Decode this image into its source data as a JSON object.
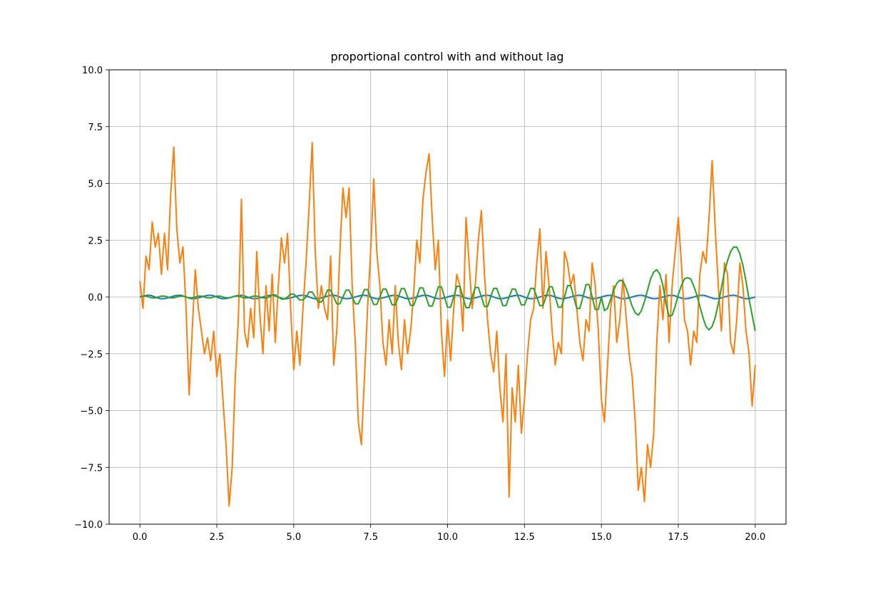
{
  "chart_data": {
    "type": "line",
    "title": "proportional control with and without lag",
    "x": [
      0,
      0.1,
      0.2,
      0.3,
      0.4,
      0.5,
      0.6,
      0.7,
      0.8,
      0.9,
      1,
      1.1,
      1.2,
      1.3,
      1.4,
      1.5,
      1.6,
      1.7,
      1.8,
      1.9,
      2,
      2.1,
      2.2,
      2.3,
      2.4,
      2.5,
      2.6,
      2.7,
      2.8,
      2.9,
      3,
      3.1,
      3.2,
      3.3,
      3.4,
      3.5,
      3.6,
      3.7,
      3.8,
      3.9,
      4,
      4.1,
      4.2,
      4.3,
      4.4,
      4.5,
      4.6,
      4.7,
      4.8,
      4.9,
      5,
      5.1,
      5.2,
      5.3,
      5.4,
      5.5,
      5.6,
      5.7,
      5.8,
      5.9,
      6,
      6.1,
      6.2,
      6.3,
      6.4,
      6.5,
      6.6,
      6.7,
      6.8,
      6.9,
      7,
      7.1,
      7.2,
      7.3,
      7.4,
      7.5,
      7.6,
      7.7,
      7.8,
      7.9,
      8,
      8.1,
      8.2,
      8.3,
      8.4,
      8.5,
      8.6,
      8.7,
      8.8,
      8.9,
      9,
      9.1,
      9.2,
      9.3,
      9.4,
      9.5,
      9.6,
      9.7,
      9.8,
      9.9,
      10,
      10.1,
      10.2,
      10.3,
      10.4,
      10.5,
      10.6,
      10.7,
      10.8,
      10.9,
      11,
      11.1,
      11.2,
      11.3,
      11.4,
      11.5,
      11.6,
      11.7,
      11.8,
      11.9,
      12,
      12.1,
      12.2,
      12.3,
      12.4,
      12.5,
      12.6,
      12.7,
      12.8,
      12.9,
      13,
      13.1,
      13.2,
      13.3,
      13.4,
      13.5,
      13.6,
      13.7,
      13.8,
      13.9,
      14,
      14.1,
      14.2,
      14.3,
      14.4,
      14.5,
      14.6,
      14.7,
      14.8,
      14.9,
      15,
      15.1,
      15.2,
      15.3,
      15.4,
      15.5,
      15.6,
      15.7,
      15.8,
      15.9,
      16,
      16.1,
      16.2,
      16.3,
      16.4,
      16.5,
      16.6,
      16.7,
      16.8,
      16.9,
      17,
      17.1,
      17.2,
      17.3,
      17.4,
      17.5,
      17.6,
      17.7,
      17.8,
      17.9,
      18,
      18.1,
      18.2,
      18.3,
      18.4,
      18.5,
      18.6,
      18.7,
      18.8,
      18.9,
      19,
      19.1,
      19.2,
      19.3,
      19.4,
      19.5,
      19.6,
      19.7,
      19.8,
      19.9,
      20
    ],
    "series": [
      {
        "color": "#1f77b4",
        "values": [
          0,
          0.04,
          0.07,
          0.08,
          0.05,
          0,
          -0.05,
          -0.08,
          -0.07,
          -0.04,
          0,
          0.04,
          0.07,
          0.08,
          0.05,
          0,
          -0.05,
          -0.08,
          -0.07,
          -0.04,
          0,
          0.04,
          0.07,
          0.08,
          0.05,
          0,
          -0.05,
          -0.08,
          -0.07,
          -0.04,
          0,
          0.04,
          0.07,
          0.08,
          0.05,
          0,
          -0.05,
          -0.08,
          -0.07,
          -0.04,
          0,
          0.04,
          0.07,
          0.08,
          0.05,
          0,
          -0.05,
          -0.08,
          -0.07,
          -0.04,
          0,
          0.04,
          0.07,
          0.08,
          0.05,
          0,
          -0.05,
          -0.08,
          -0.07,
          -0.04,
          0,
          0.04,
          0.07,
          0.08,
          0.05,
          0,
          -0.05,
          -0.08,
          -0.07,
          -0.04,
          0,
          0.04,
          0.07,
          0.08,
          0.05,
          0,
          -0.05,
          -0.08,
          -0.07,
          -0.04,
          0,
          0.04,
          0.07,
          0.08,
          0.05,
          0,
          -0.05,
          -0.08,
          -0.07,
          -0.04,
          0,
          0.04,
          0.07,
          0.08,
          0.05,
          0,
          -0.05,
          -0.08,
          -0.07,
          -0.04,
          0,
          0.04,
          0.07,
          0.08,
          0.05,
          0,
          -0.05,
          -0.08,
          -0.07,
          -0.04,
          0,
          0.04,
          0.07,
          0.08,
          0.05,
          0,
          -0.05,
          -0.08,
          -0.07,
          -0.04,
          0,
          0.04,
          0.07,
          0.08,
          0.05,
          0,
          -0.05,
          -0.08,
          -0.07,
          -0.04,
          0,
          0.04,
          0.07,
          0.08,
          0.05,
          0,
          -0.05,
          -0.08,
          -0.07,
          -0.04,
          0,
          0.04,
          0.07,
          0.08,
          0.05,
          0,
          -0.05,
          -0.08,
          -0.07,
          -0.04,
          0,
          0.04,
          0.07,
          0.08,
          0.05,
          0,
          -0.05,
          -0.08,
          -0.07,
          -0.04,
          0,
          0.04,
          0.07,
          0.08,
          0.05,
          0,
          -0.05,
          -0.08,
          -0.07,
          -0.04,
          0,
          0.04,
          0.07,
          0.08,
          0.05,
          0,
          -0.05,
          -0.08,
          -0.07,
          -0.04,
          0,
          0.04,
          0.07,
          0.08,
          0.05,
          0,
          -0.05,
          -0.08,
          -0.07,
          -0.04,
          0,
          0.04,
          0.07,
          0.08,
          0.05,
          0,
          -0.05,
          -0.08,
          -0.07,
          -0.04,
          0
        ]
      },
      {
        "color": "#ff7f0e",
        "values": [
          0.7,
          -0.5,
          1.8,
          1.2,
          3.3,
          2.2,
          2.8,
          1.0,
          2.8,
          1.2,
          4.5,
          6.6,
          3.0,
          1.5,
          2.2,
          -0.5,
          -4.3,
          -1.5,
          1.2,
          -0.5,
          -1.5,
          -2.5,
          -1.8,
          -2.8,
          -1.5,
          -3.5,
          -2.5,
          -4.5,
          -6.5,
          -9.2,
          -7.5,
          -3.5,
          -1.0,
          4.3,
          -1.5,
          -2.2,
          -0.5,
          -1.8,
          2.0,
          -0.8,
          -2.5,
          0.5,
          -1.5,
          1.0,
          -2.0,
          0.5,
          2.6,
          1.5,
          2.8,
          -0.5,
          -3.2,
          -1.5,
          -3.0,
          -0.5,
          1.5,
          4.0,
          6.8,
          2.0,
          -0.5,
          0.5,
          -0.5,
          -1.0,
          1.8,
          -3.0,
          -1.5,
          2.0,
          4.8,
          3.5,
          4.8,
          0.5,
          -2.0,
          -5.5,
          -6.5,
          -3.5,
          -0.5,
          2.0,
          5.2,
          2.0,
          0.5,
          -2.0,
          -3.0,
          -1.0,
          -2.5,
          0.5,
          -2.0,
          -3.2,
          -1.0,
          -2.5,
          -1.5,
          0.2,
          2.5,
          1.5,
          4.3,
          5.5,
          6.3,
          3.5,
          1.2,
          2.5,
          -1.5,
          -3.5,
          -1.0,
          -2.8,
          -0.5,
          1.0,
          0.5,
          -1.5,
          3.5,
          1.5,
          -0.5,
          0.5,
          2.5,
          3.8,
          1.0,
          -1.0,
          -2.5,
          -3.3,
          -1.5,
          -4.0,
          -5.5,
          -2.5,
          -8.8,
          -4.0,
          -5.5,
          -3.0,
          -6.0,
          -4.5,
          -2.5,
          -1.0,
          -0.5,
          1.5,
          3.0,
          -0.5,
          2.0,
          0.5,
          -1.5,
          -3.0,
          -2.0,
          -2.5,
          2.0,
          1.5,
          0.5,
          1.0,
          -0.5,
          -2.0,
          -2.8,
          -1.0,
          -1.5,
          1.5,
          0.5,
          -1.5,
          -4.5,
          -5.5,
          -3.0,
          -0.5,
          0.5,
          -2.0,
          -1.0,
          0.8,
          -0.8,
          -2.5,
          -3.5,
          -5.5,
          -8.5,
          -7.5,
          -9.0,
          -6.5,
          -7.5,
          -6.0,
          -2.0,
          0.5,
          -1.0,
          1.0,
          -2.0,
          0.5,
          2.0,
          3.5,
          1.5,
          -1.0,
          -1.5,
          -3.0,
          -1.5,
          -2.0,
          1.0,
          2.0,
          1.5,
          3.5,
          6.0,
          3.0,
          0.5,
          -1.5,
          1.5,
          1.0,
          -2.0,
          -2.5,
          -1.0,
          1.5,
          0.5,
          -1.5,
          -2.5,
          -4.8,
          -3.0
        ]
      },
      {
        "color": "#2ca02c",
        "values": [
          0,
          0.04,
          0.04,
          0,
          -0.04,
          -0.04,
          0,
          0.04,
          0.04,
          0,
          -0.04,
          -0.04,
          0,
          0.04,
          0.04,
          0,
          -0.04,
          -0.04,
          0,
          0.04,
          0.04,
          0,
          -0.04,
          -0.04,
          0,
          0.04,
          0.04,
          0,
          -0.04,
          -0.04,
          0,
          0.04,
          0.04,
          0,
          -0.04,
          -0.04,
          0,
          0.04,
          0.04,
          0,
          -0.04,
          -0.04,
          0,
          0.09,
          0.09,
          0,
          -0.09,
          -0.09,
          0,
          0.13,
          0.13,
          0,
          -0.13,
          -0.13,
          0,
          0.22,
          0.22,
          0,
          -0.22,
          -0.22,
          0,
          0.3,
          0.3,
          0,
          -0.3,
          -0.3,
          0,
          0.3,
          0.3,
          0,
          -0.3,
          -0.3,
          0,
          0.33,
          0.33,
          0,
          -0.33,
          -0.33,
          0,
          0.35,
          0.35,
          0,
          -0.35,
          -0.35,
          0,
          0.37,
          0.37,
          0,
          -0.37,
          -0.37,
          0,
          0.4,
          0.4,
          0,
          -0.4,
          -0.4,
          0,
          0.45,
          0.45,
          0,
          -0.45,
          -0.45,
          0,
          0.47,
          0.47,
          0,
          -0.47,
          -0.47,
          0,
          0.42,
          0.42,
          0,
          -0.42,
          -0.42,
          0,
          0.38,
          0.38,
          0,
          -0.38,
          -0.38,
          0,
          0.35,
          0.35,
          0,
          -0.35,
          -0.35,
          0,
          0.38,
          0.38,
          0,
          -0.38,
          -0.38,
          0,
          0.45,
          0.45,
          0,
          -0.45,
          -0.45,
          0,
          0.5,
          0.5,
          0,
          -0.5,
          -0.5,
          0,
          0.55,
          0.55,
          0,
          -0.55,
          -0.55,
          0,
          -0.6,
          -0.5,
          -0.1,
          0.3,
          0.6,
          0.74,
          0.7,
          0.4,
          0,
          -0.4,
          -0.7,
          -0.8,
          -0.6,
          -0.2,
          0.3,
          0.8,
          1.1,
          1.2,
          1.0,
          0.5,
          -0.3,
          -0.85,
          -0.8,
          -0.4,
          0.1,
          0.5,
          0.8,
          0.85,
          0.8,
          0.5,
          0.1,
          -0.4,
          -0.9,
          -1.3,
          -1.45,
          -1.3,
          -0.9,
          -0.3,
          0.4,
          1.1,
          1.6,
          2.0,
          2.2,
          2.2,
          1.9,
          1.4,
          0.7,
          -0.1,
          -0.8,
          -1.5
        ]
      }
    ],
    "xlim": [
      -1,
      21
    ],
    "xticks": [
      {
        "value": 0,
        "label": "0.0"
      },
      2.5,
      {
        "value": 5,
        "label": "5.0"
      },
      7.5,
      {
        "value": 10,
        "label": "10.0"
      },
      12.5,
      {
        "value": 15,
        "label": "15.0"
      },
      17.5,
      {
        "value": 20,
        "label": "20.0"
      }
    ],
    "ylim": [
      -10,
      10
    ],
    "yticks": [
      {
        "value": -10,
        "label": "−10.0"
      },
      {
        "value": -7.5,
        "label": "−7.5"
      },
      {
        "value": -5,
        "label": "−5.0"
      },
      {
        "value": -2.5,
        "label": "−2.5"
      },
      {
        "value": 0,
        "label": "0.0"
      },
      2.5,
      {
        "value": 5,
        "label": "5.0"
      },
      7.5,
      {
        "value": 10,
        "label": "10.0"
      }
    ],
    "grid": true
  }
}
